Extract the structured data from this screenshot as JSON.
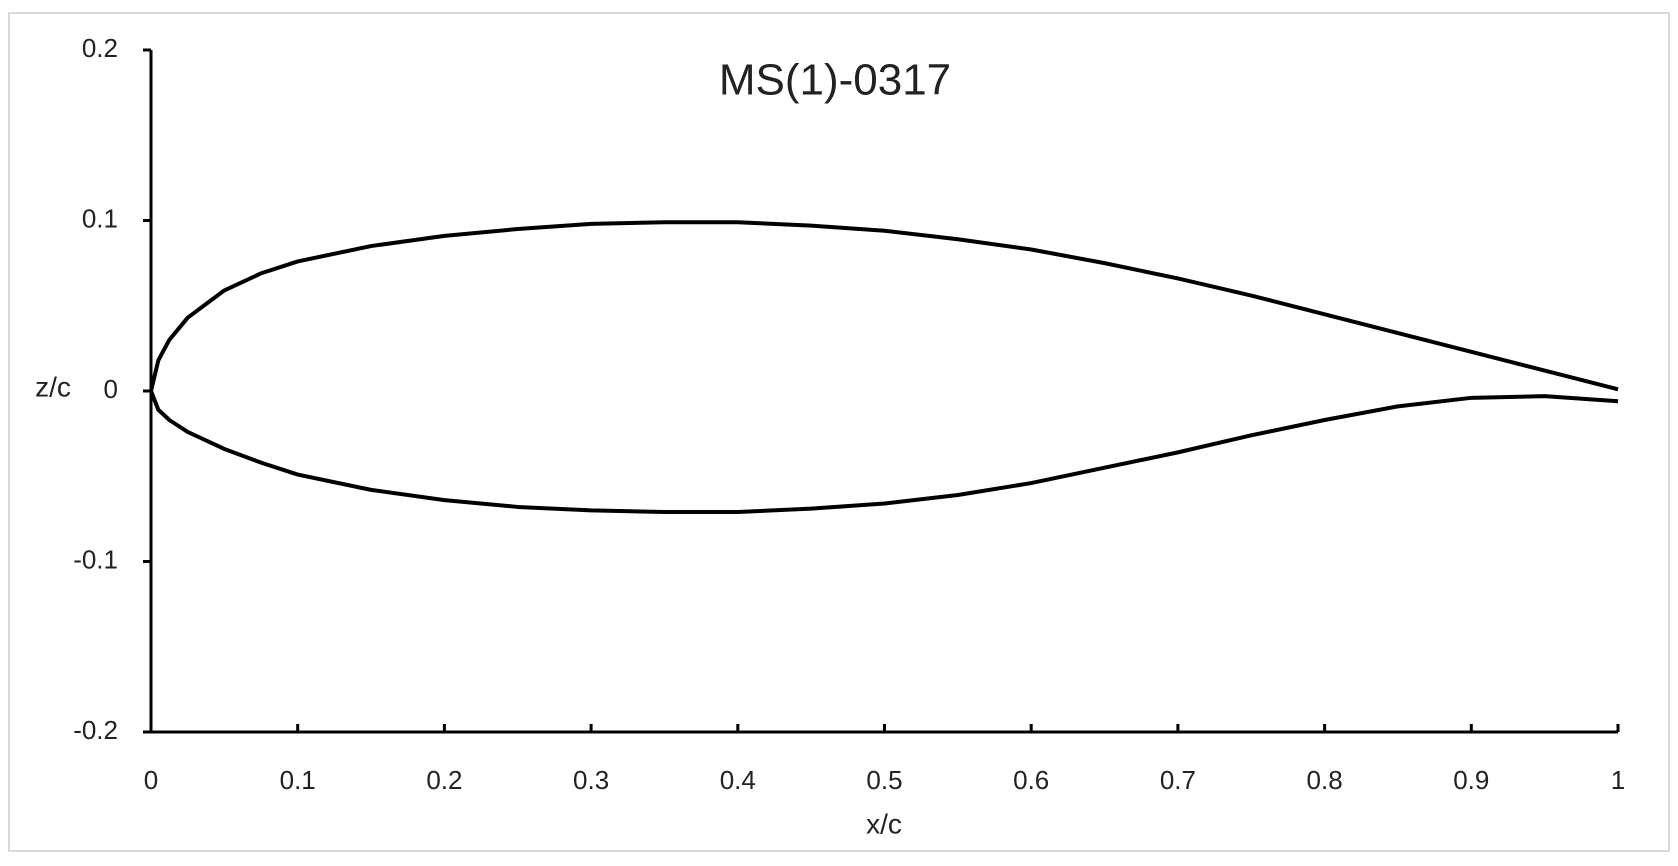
{
  "chart_data": {
    "type": "line",
    "title": "MS(1)-0317",
    "x_label": "x/c",
    "y_label": "z/c",
    "x": [
      0,
      0.005,
      0.0125,
      0.025,
      0.05,
      0.075,
      0.1,
      0.15,
      0.2,
      0.25,
      0.3,
      0.35,
      0.4,
      0.45,
      0.5,
      0.55,
      0.6,
      0.65,
      0.7,
      0.75,
      0.8,
      0.85,
      0.9,
      0.95,
      1
    ],
    "series": [
      {
        "color": "#000000",
        "values": [
          0,
          0.018,
          0.03,
          0.043,
          0.059,
          0.069,
          0.076,
          0.085,
          0.091,
          0.095,
          0.098,
          0.099,
          0.099,
          0.097,
          0.094,
          0.089,
          0.083,
          0.075,
          0.066,
          0.056,
          0.045,
          0.034,
          0.023,
          0.012,
          0.001
        ]
      },
      {
        "color": "#000000",
        "values": [
          0,
          -0.011,
          -0.017,
          -0.024,
          -0.034,
          -0.042,
          -0.049,
          -0.058,
          -0.064,
          -0.068,
          -0.07,
          -0.071,
          -0.071,
          -0.069,
          -0.066,
          -0.061,
          -0.054,
          -0.045,
          -0.036,
          -0.026,
          -0.017,
          -0.009,
          -0.004,
          -0.003,
          -0.006
        ]
      }
    ],
    "xlim": [
      0,
      1
    ],
    "xticks": [
      0,
      0.1,
      0.2,
      0.3,
      0.4,
      0.5,
      0.6,
      0.7,
      0.8,
      0.9,
      1
    ],
    "ylim": [
      -0.2,
      0.2
    ],
    "yticks": [
      -0.2,
      -0.1,
      0,
      0.1,
      0.2
    ],
    "grid": false
  }
}
